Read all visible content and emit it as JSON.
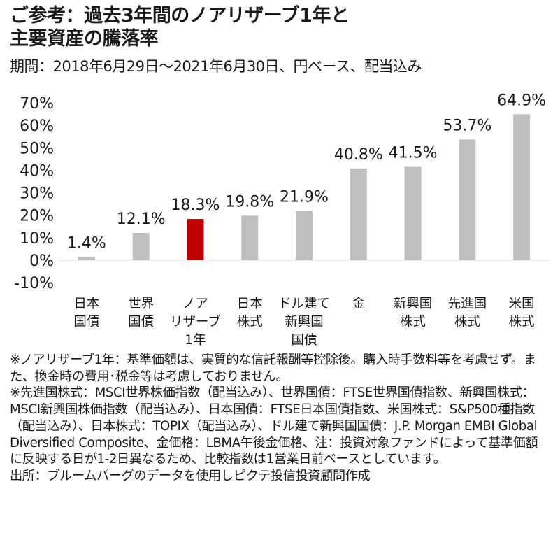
{
  "title_lines": [
    "ご参考：過去3年間のノアリザーブ1年と",
    "主要資産の騰落率"
  ],
  "subtitle": "期間：2018年6月29日～2021年6月30日、円ベース、配当込み",
  "colors": {
    "highlight": "#c00000",
    "bar": "#bfbfbf",
    "axis": "#d9d9d9"
  },
  "chart_data": {
    "type": "bar",
    "categories": [
      "日本\n国債",
      "世界\n国債",
      "ノア\nリザーブ\n1年",
      "日本\n株式",
      "ドル建て\n新興国\n国債",
      "金",
      "新興国\n株式",
      "先進国\n株式",
      "米国\n株式"
    ],
    "values": [
      1.4,
      12.1,
      18.3,
      19.8,
      21.9,
      40.8,
      41.5,
      53.7,
      64.9
    ],
    "data_labels": [
      "1.4%",
      "12.1%",
      "18.3%",
      "19.8%",
      "21.9%",
      "40.8%",
      "41.5%",
      "53.7%",
      "64.9%"
    ],
    "highlight_index": 2,
    "ylim": [
      -10,
      70
    ],
    "yticks": [
      -10,
      0,
      10,
      20,
      30,
      40,
      50,
      60,
      70
    ],
    "ytick_labels": [
      "-10%",
      "0%",
      "10%",
      "20%",
      "30%",
      "40%",
      "50%",
      "60%",
      "70%"
    ],
    "grid": false,
    "legend": "none"
  },
  "notes": [
    "※ノアリザーブ1年：基準価額は、実質的な信託報酬等控除後。購入時手数料等を考慮せず。また、換金時の費用･税金等は考慮しておりません。",
    "※先進国株式：MSCI世界株価指数（配当込み）、世界国債：FTSE世界国債指数、新興国株式：MSCI新興国株価指数（配当込み）、日本国債：FTSE日本国債指数、米国株式：S&P500種指数（配当込み）、日本株式：TOPIX（配当込み）、ドル建て新興国国債：J.P. Morgan EMBI Global Diversified Composite、金価格：LBMA午後金価格、注：投資対象ファンドによって基準価額に反映する日が1-2日異なるため、比較指数は1営業日前ベースとしています。"
  ],
  "source": "出所：ブルームバーグのデータを使用しピクテ投信投資顧問作成"
}
